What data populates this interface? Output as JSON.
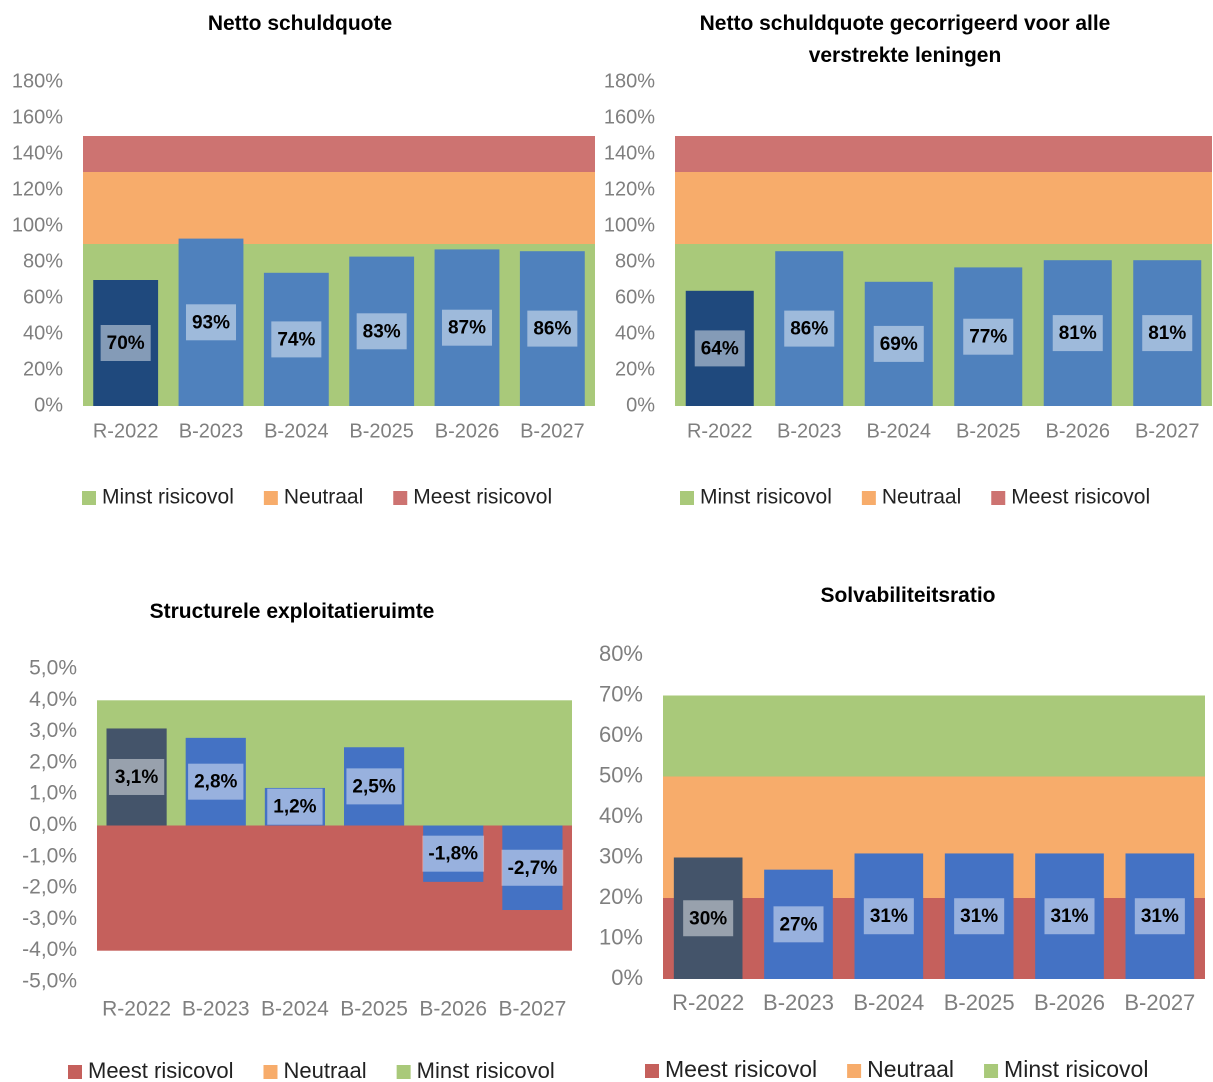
{
  "chart_data": [
    {
      "type": "bar",
      "title": "Netto schuldquote",
      "categories": [
        "R-2022",
        "B-2023",
        "B-2024",
        "B-2025",
        "B-2026",
        "B-2027"
      ],
      "values": [
        70,
        93,
        74,
        83,
        87,
        86
      ],
      "value_labels": [
        "70%",
        "93%",
        "74%",
        "83%",
        "87%",
        "86%"
      ],
      "bar_colors": [
        "#1f497d",
        "#4f81bd",
        "#4f81bd",
        "#4f81bd",
        "#4f81bd",
        "#4f81bd"
      ],
      "bands": [
        {
          "name": "Minst risicovol",
          "color": "#a9c97a",
          "value": 90
        },
        {
          "name": "Neutraal",
          "color": "#f7ac6b",
          "value": 40
        },
        {
          "name": "Meest risicovol",
          "color": "#cd7371",
          "value": 20
        }
      ],
      "ylim": [
        0,
        180
      ],
      "yticks": [
        {
          "value": 0,
          "label": "0%"
        },
        {
          "value": 20,
          "label": "20%"
        },
        {
          "value": 40,
          "label": "40%"
        },
        {
          "value": 60,
          "label": "60%"
        },
        {
          "value": 80,
          "label": "80%"
        },
        {
          "value": 100,
          "label": "100%"
        },
        {
          "value": 120,
          "label": "120%"
        },
        {
          "value": 140,
          "label": "140%"
        },
        {
          "value": 160,
          "label": "160%"
        },
        {
          "value": 180,
          "label": "180%"
        }
      ],
      "legend": "bottom"
    },
    {
      "type": "bar",
      "title": "Netto schuldquote gecorrigeerd voor alle verstrekte leningen",
      "categories": [
        "R-2022",
        "B-2023",
        "B-2024",
        "B-2025",
        "B-2026",
        "B-2027"
      ],
      "values": [
        64,
        86,
        69,
        77,
        81,
        81
      ],
      "value_labels": [
        "64%",
        "86%",
        "69%",
        "77%",
        "81%",
        "81%"
      ],
      "bar_colors": [
        "#1f497d",
        "#4f81bd",
        "#4f81bd",
        "#4f81bd",
        "#4f81bd",
        "#4f81bd"
      ],
      "bands": [
        {
          "name": "Minst risicovol",
          "color": "#a9c97a",
          "value": 90
        },
        {
          "name": "Neutraal",
          "color": "#f7ac6b",
          "value": 40
        },
        {
          "name": "Meest risicovol",
          "color": "#cd7371",
          "value": 20
        }
      ],
      "ylim": [
        0,
        180
      ],
      "yticks": [
        {
          "value": 0,
          "label": "0%"
        },
        {
          "value": 20,
          "label": "20%"
        },
        {
          "value": 40,
          "label": "40%"
        },
        {
          "value": 60,
          "label": "60%"
        },
        {
          "value": 80,
          "label": "80%"
        },
        {
          "value": 100,
          "label": "100%"
        },
        {
          "value": 120,
          "label": "120%"
        },
        {
          "value": 140,
          "label": "140%"
        },
        {
          "value": 160,
          "label": "160%"
        },
        {
          "value": 180,
          "label": "180%"
        }
      ],
      "legend": "bottom"
    },
    {
      "type": "bar",
      "title": "Structurele exploitatieruimte",
      "categories": [
        "R-2022",
        "B-2023",
        "B-2024",
        "B-2025",
        "B-2026",
        "B-2027"
      ],
      "values": [
        3.1,
        2.8,
        1.2,
        2.5,
        -1.8,
        -2.7
      ],
      "value_labels": [
        "3,1%",
        "2,8%",
        "1,2%",
        "2,5%",
        "-1,8%",
        "-2,7%"
      ],
      "bar_colors": [
        "#44546a",
        "#4472c4",
        "#4472c4",
        "#4472c4",
        "#4472c4",
        "#4472c4"
      ],
      "bands": [
        {
          "name": "Meest risicovol",
          "color": "#c5605c",
          "value": -4
        },
        {
          "name": "Neutraal",
          "color": "#f7ac6b",
          "value": 0
        },
        {
          "name": "Minst risicovol",
          "color": "#a9c97a",
          "value": 4
        }
      ],
      "ylim": [
        -5,
        5
      ],
      "yticks": [
        {
          "value": -5,
          "label": "-5,0%"
        },
        {
          "value": -4,
          "label": "-4,0%"
        },
        {
          "value": -3,
          "label": "-3,0%"
        },
        {
          "value": -2,
          "label": "-2,0%"
        },
        {
          "value": -1,
          "label": "-1,0%"
        },
        {
          "value": 0,
          "label": "0,0%"
        },
        {
          "value": 1,
          "label": "1,0%"
        },
        {
          "value": 2,
          "label": "2,0%"
        },
        {
          "value": 3,
          "label": "3,0%"
        },
        {
          "value": 4,
          "label": "4,0%"
        },
        {
          "value": 5,
          "label": "5,0%"
        }
      ],
      "legend": "bottom"
    },
    {
      "type": "bar",
      "title": "Solvabiliteitsratio",
      "categories": [
        "R-2022",
        "B-2023",
        "B-2024",
        "B-2025",
        "B-2026",
        "B-2027"
      ],
      "values": [
        30,
        27,
        31,
        31,
        31,
        31
      ],
      "value_labels": [
        "30%",
        "27%",
        "31%",
        "31%",
        "31%",
        "31%"
      ],
      "bar_colors": [
        "#44546a",
        "#4472c4",
        "#4472c4",
        "#4472c4",
        "#4472c4",
        "#4472c4"
      ],
      "bands": [
        {
          "name": "Meest risicovol",
          "color": "#c5605c",
          "value": 20
        },
        {
          "name": "Neutraal",
          "color": "#f7ac6b",
          "value": 30
        },
        {
          "name": "Minst risicovol",
          "color": "#a9c97a",
          "value": 20
        }
      ],
      "ylim": [
        0,
        80
      ],
      "yticks": [
        {
          "value": 0,
          "label": "0%"
        },
        {
          "value": 10,
          "label": "10%"
        },
        {
          "value": 20,
          "label": "20%"
        },
        {
          "value": 30,
          "label": "30%"
        },
        {
          "value": 40,
          "label": "40%"
        },
        {
          "value": 50,
          "label": "50%"
        },
        {
          "value": 60,
          "label": "60%"
        },
        {
          "value": 70,
          "label": "70%"
        },
        {
          "value": 80,
          "label": "80%"
        }
      ],
      "legend": "bottom"
    }
  ]
}
